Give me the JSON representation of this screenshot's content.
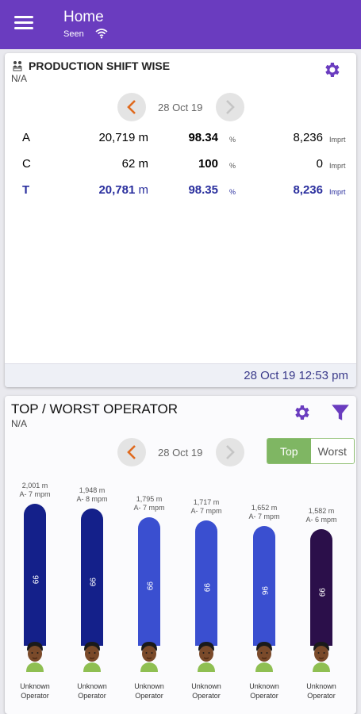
{
  "appbar": {
    "title": "Home",
    "subtitle": "Seen",
    "background": "#6a3cbf"
  },
  "production": {
    "title": "PRODUCTION SHIFT WISE",
    "subtitle": "N/A",
    "date": "28 Oct 19",
    "rows": [
      {
        "shift": "A",
        "length": "20,719",
        "length_unit": "m",
        "percent": "98.34",
        "percent_unit": "%",
        "impressions": "8,236",
        "impressions_unit": "Imprt"
      },
      {
        "shift": "C",
        "length": "62",
        "length_unit": "m",
        "percent": "100",
        "percent_unit": "%",
        "impressions": "0",
        "impressions_unit": "Imprt"
      },
      {
        "shift": "T",
        "length": "20,781",
        "length_unit": "m",
        "percent": "98.35",
        "percent_unit": "%",
        "impressions": "8,236",
        "impressions_unit": "Imprt"
      }
    ],
    "footer_time": "28 Oct 19 12:53 pm"
  },
  "operators": {
    "title": "TOP / WORST OPERATOR",
    "subtitle": "N/A",
    "date": "28 Oct 19",
    "toggle": {
      "top": "Top",
      "worst": "Worst",
      "selected": "Top"
    },
    "items": [
      {
        "length": "2,001 m",
        "speed": "A- 7 mpm",
        "score": "99",
        "name": "Unknown",
        "role": "Operator",
        "color": "#14208a"
      },
      {
        "length": "1,948 m",
        "speed": "A- 8 mpm",
        "score": "99",
        "name": "Unknown",
        "role": "Operator",
        "color": "#14208a"
      },
      {
        "length": "1,795 m",
        "speed": "A- 7 mpm",
        "score": "99",
        "name": "Unknown",
        "role": "Operator",
        "color": "#3a4fd0"
      },
      {
        "length": "1,717 m",
        "speed": "A- 7 mpm",
        "score": "99",
        "name": "Unknown",
        "role": "Operator",
        "color": "#3a4fd0"
      },
      {
        "length": "1,652 m",
        "speed": "A- 7 mpm",
        "score": "96",
        "name": "Unknown",
        "role": "Operator",
        "color": "#3a4fd0"
      },
      {
        "length": "1,582 m",
        "speed": "A- 6 mpm",
        "score": "99",
        "name": "Unknown",
        "role": "Operator",
        "color": "#2b0f4a"
      }
    ]
  }
}
